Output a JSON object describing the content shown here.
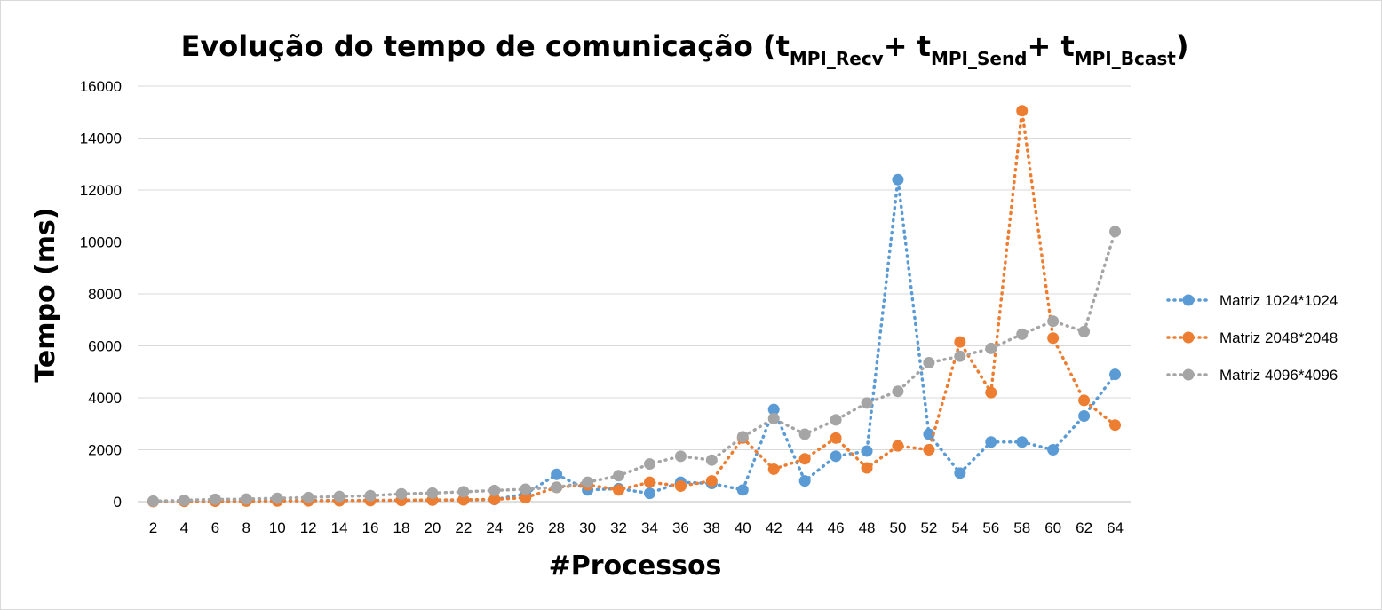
{
  "chart_data": {
    "type": "line",
    "title": {
      "main": "Evolução do tempo de comunicação (t",
      "sub1": "MPI_Recv",
      "plus1": "+ t",
      "sub2": "MPI_Send",
      "plus2": "+ t",
      "sub3": "MPI_Bcast",
      "close": ")"
    },
    "xlabel": "#Processos",
    "ylabel": "Tempo (ms)",
    "ylim": [
      0,
      16000
    ],
    "yticks": [
      "0",
      "2000",
      "4000",
      "6000",
      "8000",
      "10000",
      "12000",
      "14000",
      "16000"
    ],
    "grid": true,
    "legend_position": "right",
    "categories": [
      "2",
      "4",
      "6",
      "8",
      "10",
      "12",
      "14",
      "16",
      "18",
      "20",
      "22",
      "24",
      "26",
      "28",
      "30",
      "32",
      "34",
      "36",
      "38",
      "40",
      "42",
      "44",
      "46",
      "48",
      "50",
      "52",
      "54",
      "56",
      "58",
      "60",
      "62",
      "64"
    ],
    "series": [
      {
        "name": "Matriz 1024*1024",
        "color": "#5b9bd5",
        "values": [
          10,
          20,
          25,
          30,
          35,
          40,
          45,
          50,
          55,
          60,
          70,
          80,
          300,
          1050,
          450,
          500,
          320,
          750,
          700,
          450,
          3550,
          800,
          1750,
          1950,
          12400,
          2600,
          1100,
          2300,
          2300,
          2000,
          3300,
          4900
        ]
      },
      {
        "name": "Matriz 2048*2048",
        "color": "#ed7d31",
        "values": [
          5,
          10,
          15,
          20,
          25,
          30,
          35,
          40,
          50,
          60,
          70,
          90,
          150,
          550,
          650,
          450,
          750,
          600,
          800,
          2450,
          1250,
          1650,
          2450,
          1300,
          2150,
          2000,
          6150,
          4200,
          15050,
          6300,
          3900,
          2950
        ]
      },
      {
        "name": "Matriz 4096*4096",
        "color": "#a5a5a5",
        "values": [
          20,
          50,
          90,
          100,
          130,
          160,
          200,
          230,
          300,
          330,
          380,
          430,
          480,
          550,
          750,
          1000,
          1450,
          1750,
          1600,
          2500,
          3200,
          2600,
          3150,
          3800,
          4250,
          5350,
          5600,
          5900,
          6450,
          6950,
          6550,
          10400
        ]
      }
    ]
  }
}
